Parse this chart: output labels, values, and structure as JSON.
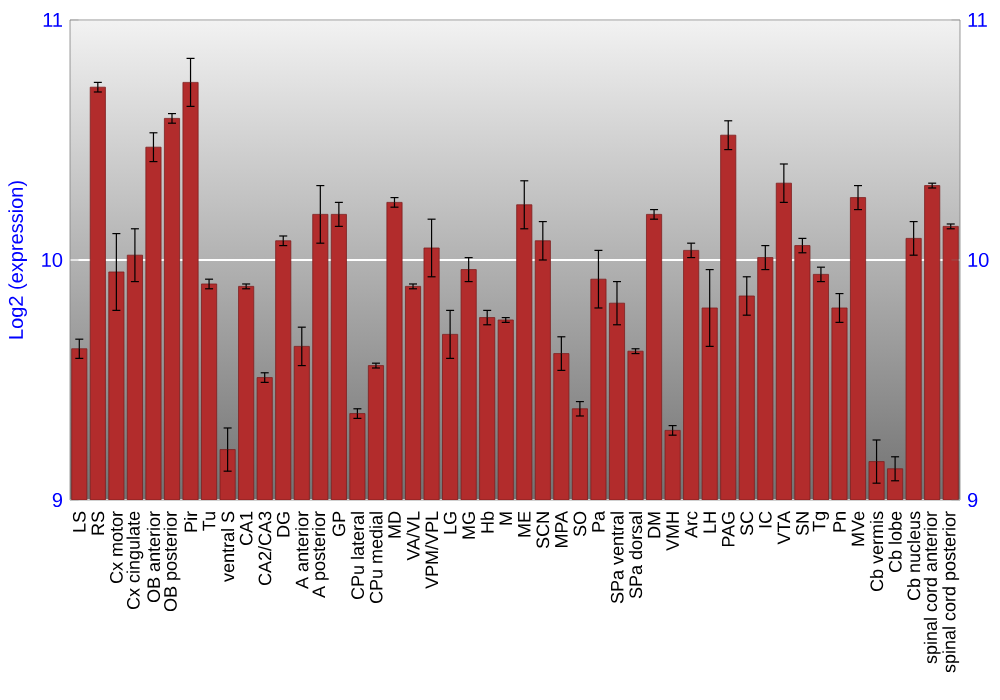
{
  "chart_data": {
    "type": "bar",
    "ylabel": "Log2 (expression)",
    "categories": [
      "LS",
      "RS",
      "Cx motor",
      "Cx cingulate",
      "OB anterior",
      "OB posterior",
      "Pir",
      "Tu",
      "ventral S",
      "CA1",
      "CA2/CA3",
      "DG",
      "A anterior",
      "A posterior",
      "GP",
      "CPu lateral",
      "CPu medial",
      "MD",
      "VA/VL",
      "VPM/VPL",
      "LG",
      "MG",
      "Hb",
      "M",
      "ME",
      "SCN",
      "MPA",
      "SO",
      "Pa",
      "SPa ventral",
      "SPa dorsal",
      "DM",
      "VMH",
      "Arc",
      "LH",
      "PAG",
      "SC",
      "IC",
      "VTA",
      "SN",
      "Tg",
      "Pn",
      "MVe",
      "Cb vermis",
      "Cb lobe",
      "Cb nucleus",
      "spinal cord anterior",
      "spinal cord posterior"
    ],
    "values": [
      9.63,
      10.72,
      9.95,
      10.02,
      10.47,
      10.59,
      10.74,
      9.9,
      9.21,
      9.89,
      9.51,
      10.08,
      9.64,
      10.19,
      10.19,
      9.36,
      9.56,
      10.24,
      9.89,
      10.05,
      9.69,
      9.96,
      9.76,
      9.75,
      10.23,
      10.08,
      9.61,
      9.38,
      9.92,
      9.82,
      9.62,
      10.19,
      9.29,
      10.04,
      9.8,
      10.52,
      9.85,
      10.01,
      10.32,
      10.06,
      9.94,
      9.8,
      10.26,
      9.16,
      9.13,
      10.09,
      10.31,
      10.14
    ],
    "errors": [
      0.04,
      0.02,
      0.16,
      0.11,
      0.06,
      0.02,
      0.1,
      0.02,
      0.09,
      0.01,
      0.02,
      0.02,
      0.08,
      0.12,
      0.05,
      0.02,
      0.01,
      0.02,
      0.01,
      0.12,
      0.1,
      0.05,
      0.03,
      0.01,
      0.1,
      0.08,
      0.07,
      0.03,
      0.12,
      0.09,
      0.01,
      0.02,
      0.02,
      0.03,
      0.16,
      0.06,
      0.08,
      0.05,
      0.08,
      0.03,
      0.03,
      0.06,
      0.05,
      0.09,
      0.05,
      0.07,
      0.01,
      0.01
    ],
    "color": "#b22c2c",
    "ylim": [
      9,
      11
    ],
    "yticks": [
      9,
      10,
      11
    ],
    "y2lim": [
      9,
      11
    ],
    "y2ticks": [
      9,
      10,
      11
    ],
    "grid": "y"
  }
}
